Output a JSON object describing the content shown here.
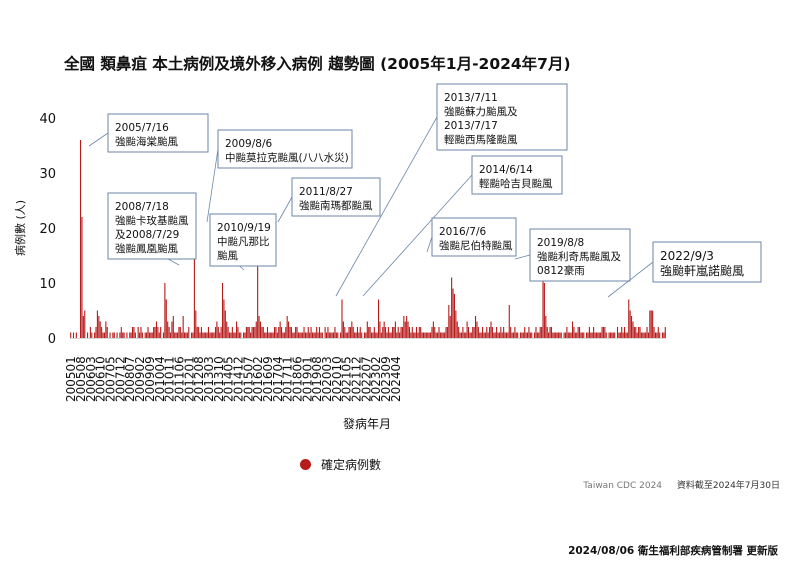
{
  "chart_data": {
    "type": "bar",
    "title": "全國 類鼻疽 本土病例及境外移入病例 趨勢圖 (2005年1月-2024年7月)",
    "xlabel": "發病年月",
    "ylabel": "病例數 (人)",
    "ylim": [
      0,
      40
    ],
    "yticks": [
      0,
      10,
      20,
      30,
      40
    ],
    "grid": false,
    "tick_labels": [
      "200501",
      "200508",
      "200603",
      "200610",
      "200705",
      "200712",
      "200807",
      "200902",
      "200909",
      "201004",
      "201011",
      "201106",
      "201201",
      "201208",
      "201303",
      "201310",
      "201405",
      "201412",
      "201507",
      "201602",
      "201609",
      "201704",
      "201711",
      "201806",
      "201901",
      "201908",
      "202003",
      "202010",
      "202105",
      "202112",
      "202207",
      "202302",
      "202309",
      "202404"
    ],
    "legend": [
      {
        "label": "確定病例數",
        "color": "#b71c1c"
      }
    ],
    "legend_position": "bottom",
    "series": [
      {
        "name": "確定病例數",
        "color": "#b71c1c",
        "start": "2005-01",
        "values": [
          1,
          0,
          1,
          0,
          1,
          0,
          0,
          36,
          22,
          4,
          5,
          0,
          1,
          0,
          2,
          1,
          0,
          1,
          2,
          5,
          4,
          3,
          2,
          1,
          1,
          3,
          2,
          0,
          1,
          0,
          1,
          1,
          0,
          1,
          0,
          1,
          2,
          1,
          1,
          0,
          1,
          0,
          1,
          1,
          2,
          2,
          1,
          0,
          2,
          1,
          2,
          1,
          0,
          1,
          1,
          2,
          1,
          1,
          1,
          2,
          2,
          3,
          2,
          1,
          2,
          0,
          1,
          10,
          7,
          3,
          2,
          1,
          3,
          4,
          1,
          1,
          1,
          2,
          2,
          1,
          4,
          1,
          1,
          1,
          2,
          0,
          1,
          1,
          22,
          5,
          2,
          2,
          1,
          2,
          1,
          1,
          1,
          1,
          2,
          1,
          1,
          1,
          1,
          2,
          3,
          2,
          1,
          2,
          10,
          7,
          5,
          3,
          2,
          1,
          1,
          2,
          1,
          1,
          3,
          2,
          1,
          1,
          0,
          1,
          1,
          2,
          2,
          2,
          1,
          2,
          2,
          2,
          3,
          21,
          4,
          3,
          2,
          2,
          1,
          1,
          2,
          1,
          1,
          1,
          1,
          2,
          2,
          1,
          2,
          3,
          2,
          1,
          1,
          2,
          4,
          3,
          2,
          2,
          1,
          1,
          2,
          2,
          1,
          1,
          1,
          1,
          2,
          1,
          1,
          2,
          1,
          2,
          1,
          1,
          1,
          2,
          1,
          2,
          1,
          1,
          0,
          2,
          1,
          2,
          1,
          1,
          1,
          1,
          2,
          1,
          1,
          0,
          1,
          7,
          3,
          2,
          1,
          1,
          2,
          2,
          3,
          2,
          1,
          1,
          2,
          1,
          2,
          1,
          0,
          1,
          1,
          3,
          2,
          2,
          1,
          1,
          2,
          1,
          1,
          7,
          3,
          1,
          2,
          3,
          2,
          1,
          2,
          1,
          1,
          2,
          2,
          3,
          1,
          2,
          1,
          2,
          2,
          4,
          3,
          4,
          3,
          2,
          1,
          2,
          1,
          1,
          2,
          1,
          2,
          2,
          1,
          1,
          1,
          1,
          1,
          1,
          1,
          2,
          3,
          2,
          1,
          1,
          2,
          1,
          1,
          1,
          1,
          2,
          2,
          6,
          4,
          11,
          9,
          8,
          5,
          3,
          2,
          1,
          1,
          2,
          1,
          1,
          3,
          2,
          1,
          1,
          2,
          2,
          4,
          3,
          2,
          1,
          1,
          2,
          1,
          1,
          2,
          1,
          2,
          3,
          2,
          1,
          1,
          2,
          1,
          1,
          2,
          1,
          2,
          1,
          1,
          1,
          6,
          2,
          1,
          1,
          2,
          1,
          1,
          0,
          1,
          1,
          1,
          2,
          1,
          1,
          2,
          1,
          1,
          0,
          1,
          2,
          1,
          1,
          2,
          2,
          15,
          10,
          4,
          2,
          1,
          2,
          2,
          1,
          1,
          1,
          1,
          1,
          1,
          1,
          0,
          1,
          1,
          2,
          1,
          1,
          1,
          3,
          2,
          1,
          1,
          2,
          2,
          1,
          1,
          1,
          0,
          1,
          1,
          2,
          1,
          1,
          2,
          1,
          1,
          1,
          1,
          1,
          2,
          2,
          2,
          1,
          0,
          1,
          1,
          1,
          1,
          1,
          0,
          2,
          1,
          1,
          2,
          1,
          2,
          1,
          1,
          7,
          5,
          4,
          3,
          2,
          2,
          1,
          2,
          2,
          1,
          1,
          1,
          1,
          2,
          1,
          5,
          5,
          5,
          2,
          1,
          1,
          2,
          1,
          0,
          1,
          1,
          2
        ]
      }
    ],
    "annotations": [
      {
        "lines": [
          "2005/7/16",
          "強颱海棠颱風"
        ]
      },
      {
        "lines": [
          "2008/7/18",
          "強颱卡玫基颱風",
          "及2008/7/29",
          "強颱鳳凰颱風"
        ]
      },
      {
        "lines": [
          "2009/8/6",
          "中颱莫拉克颱風(八八水災)"
        ]
      },
      {
        "lines": [
          "2010/9/19",
          "中颱凡那比",
          "颱風"
        ]
      },
      {
        "lines": [
          "2011/8/27",
          "強颱南瑪都颱風"
        ]
      },
      {
        "lines": [
          "2013/7/11",
          "強颱蘇力颱風及",
          "2013/7/17",
          "輕颱西馬隆颱風"
        ]
      },
      {
        "lines": [
          "2014/6/14",
          "輕颱哈吉貝颱風"
        ]
      },
      {
        "lines": [
          "2016/7/6",
          "強颱尼伯特颱風"
        ]
      },
      {
        "lines": [
          "2019/8/8",
          "強颱利奇馬颱風及",
          "0812豪雨"
        ]
      },
      {
        "lines": [
          "2022/9/3",
          "強颱軒嵐諾颱風"
        ]
      }
    ]
  },
  "source": {
    "org": "Taiwan CDC 2024",
    "data_cutoff": "資料截至2024年7月30日"
  },
  "footer": "2024/08/06 衛生福利部疾病管制署 更新版"
}
